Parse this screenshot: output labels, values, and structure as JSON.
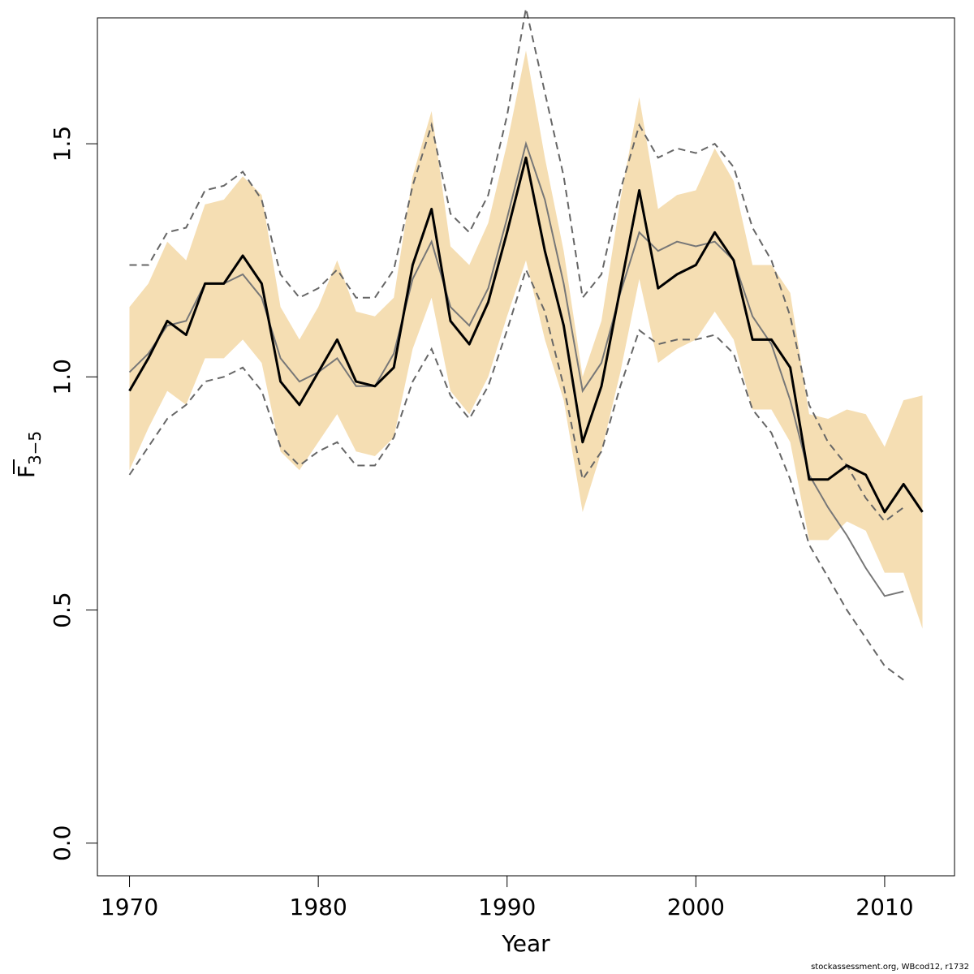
{
  "footer": "stockassessment.org, WBcod12, r1732",
  "chart_data": {
    "type": "line",
    "xlabel": "Year",
    "ylabel": {
      "main": "F",
      "sub": "3−5"
    },
    "xlim": [
      1968.3,
      2013.7
    ],
    "ylim": [
      -0.07,
      1.77
    ],
    "xticks": [
      1970,
      1980,
      1990,
      2000,
      2010
    ],
    "yticks": [
      0.0,
      0.5,
      1.0,
      1.5
    ],
    "ytick_labels": [
      "0.0",
      "0.5",
      "1.0",
      "1.5"
    ],
    "grid": false,
    "legend": "none",
    "colors": {
      "band": "#f5deb3",
      "estimate": "#000000",
      "previous": "#777777",
      "previous_ci": "#666666"
    },
    "x": [
      1970,
      1971,
      1972,
      1973,
      1974,
      1975,
      1976,
      1977,
      1978,
      1979,
      1980,
      1981,
      1982,
      1983,
      1984,
      1985,
      1986,
      1987,
      1988,
      1989,
      1990,
      1991,
      1992,
      1993,
      1994,
      1995,
      1996,
      1997,
      1998,
      1999,
      2000,
      2001,
      2002,
      2003,
      2004,
      2005,
      2006,
      2007,
      2008,
      2009,
      2010,
      2011,
      2012
    ],
    "series": [
      {
        "role": "estimate",
        "values": [
          0.97,
          1.04,
          1.12,
          1.09,
          1.2,
          1.2,
          1.26,
          1.2,
          0.99,
          0.94,
          1.01,
          1.08,
          0.99,
          0.98,
          1.02,
          1.24,
          1.36,
          1.12,
          1.07,
          1.16,
          1.31,
          1.47,
          1.27,
          1.11,
          0.86,
          0.98,
          1.19,
          1.4,
          1.19,
          1.22,
          1.24,
          1.31,
          1.25,
          1.08,
          1.08,
          1.02,
          0.78,
          0.78,
          0.81,
          0.79,
          0.71,
          0.77,
          0.71
        ]
      },
      {
        "role": "estimate_ci_band",
        "upper": [
          1.15,
          1.2,
          1.29,
          1.25,
          1.37,
          1.38,
          1.43,
          1.39,
          1.15,
          1.08,
          1.15,
          1.25,
          1.14,
          1.13,
          1.17,
          1.43,
          1.57,
          1.28,
          1.24,
          1.33,
          1.5,
          1.7,
          1.47,
          1.27,
          1.0,
          1.12,
          1.38,
          1.6,
          1.36,
          1.39,
          1.4,
          1.49,
          1.42,
          1.24,
          1.24,
          1.18,
          0.92,
          0.91,
          0.93,
          0.92,
          0.85,
          0.95,
          0.96
        ],
        "lower": [
          0.8,
          0.89,
          0.97,
          0.94,
          1.04,
          1.04,
          1.08,
          1.03,
          0.84,
          0.8,
          0.86,
          0.92,
          0.84,
          0.83,
          0.87,
          1.06,
          1.17,
          0.97,
          0.92,
          1.0,
          1.13,
          1.25,
          1.08,
          0.95,
          0.71,
          0.84,
          1.01,
          1.21,
          1.03,
          1.06,
          1.08,
          1.14,
          1.08,
          0.93,
          0.93,
          0.86,
          0.65,
          0.65,
          0.69,
          0.67,
          0.58,
          0.58,
          0.46
        ]
      },
      {
        "role": "previous_estimate",
        "x": [
          1970,
          1971,
          1972,
          1973,
          1974,
          1975,
          1976,
          1977,
          1978,
          1979,
          1980,
          1981,
          1982,
          1983,
          1984,
          1985,
          1986,
          1987,
          1988,
          1989,
          1990,
          1991,
          1992,
          1993,
          1994,
          1995,
          1996,
          1997,
          1998,
          1999,
          2000,
          2001,
          2002,
          2003,
          2004,
          2005,
          2006,
          2007,
          2008,
          2009,
          2010,
          2011
        ],
        "values": [
          1.01,
          1.05,
          1.11,
          1.12,
          1.2,
          1.2,
          1.22,
          1.17,
          1.04,
          0.99,
          1.01,
          1.04,
          0.98,
          0.98,
          1.05,
          1.21,
          1.29,
          1.15,
          1.11,
          1.19,
          1.34,
          1.5,
          1.38,
          1.2,
          0.97,
          1.03,
          1.18,
          1.31,
          1.27,
          1.29,
          1.28,
          1.29,
          1.25,
          1.13,
          1.07,
          0.95,
          0.79,
          0.72,
          0.66,
          0.59,
          0.53,
          0.54
        ]
      },
      {
        "role": "previous_ci_upper",
        "x": [
          1970,
          1971,
          1972,
          1973,
          1974,
          1975,
          1976,
          1977,
          1978,
          1979,
          1980,
          1981,
          1982,
          1983,
          1984,
          1985,
          1986,
          1987,
          1988,
          1989,
          1990,
          1991,
          1992,
          1993,
          1994,
          1995,
          1996,
          1997,
          1998,
          1999,
          2000,
          2001,
          2002,
          2003,
          2004,
          2005,
          2006,
          2007,
          2008,
          2009,
          2010,
          2011
        ],
        "values": [
          1.24,
          1.24,
          1.31,
          1.32,
          1.4,
          1.41,
          1.44,
          1.38,
          1.22,
          1.17,
          1.19,
          1.23,
          1.17,
          1.17,
          1.23,
          1.41,
          1.54,
          1.35,
          1.31,
          1.39,
          1.56,
          1.79,
          1.61,
          1.43,
          1.17,
          1.22,
          1.4,
          1.54,
          1.47,
          1.49,
          1.48,
          1.5,
          1.45,
          1.32,
          1.25,
          1.13,
          0.94,
          0.86,
          0.81,
          0.74,
          0.69,
          0.72
        ]
      },
      {
        "role": "previous_ci_lower",
        "x": [
          1970,
          1971,
          1972,
          1973,
          1974,
          1975,
          1976,
          1977,
          1978,
          1979,
          1980,
          1981,
          1982,
          1983,
          1984,
          1985,
          1986,
          1987,
          1988,
          1989,
          1990,
          1991,
          1992,
          1993,
          1994,
          1995,
          1996,
          1997,
          1998,
          1999,
          2000,
          2001,
          2002,
          2003,
          2004,
          2005,
          2006,
          2007,
          2008,
          2009,
          2010,
          2011
        ],
        "values": [
          0.79,
          0.85,
          0.91,
          0.94,
          0.99,
          1.0,
          1.02,
          0.97,
          0.85,
          0.81,
          0.84,
          0.86,
          0.81,
          0.81,
          0.87,
          0.99,
          1.06,
          0.96,
          0.91,
          0.98,
          1.1,
          1.23,
          1.14,
          0.98,
          0.78,
          0.84,
          0.98,
          1.1,
          1.07,
          1.08,
          1.08,
          1.09,
          1.05,
          0.93,
          0.88,
          0.78,
          0.64,
          0.57,
          0.5,
          0.44,
          0.38,
          0.35
        ]
      }
    ]
  }
}
